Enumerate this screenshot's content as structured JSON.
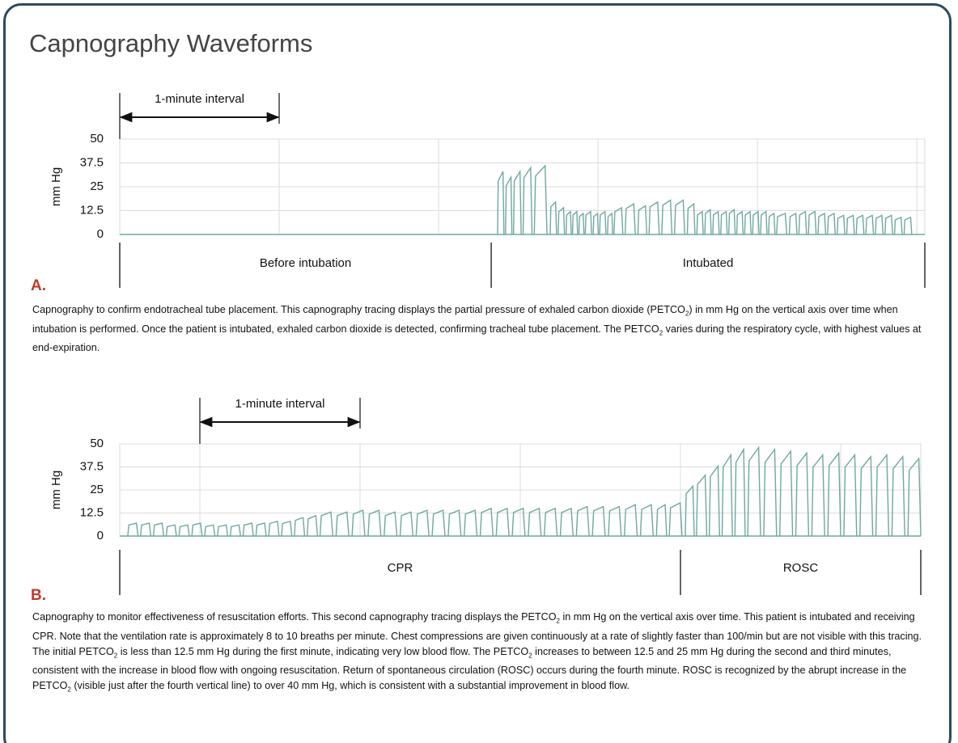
{
  "title": "Capnography Waveforms",
  "chart_data": [
    {
      "type": "capnogram",
      "panel_label": "A.",
      "y_label": "mm Hg",
      "color": "#6fa8a0",
      "grid": true,
      "xlim": [
        0,
        5.05
      ],
      "ylim": [
        0,
        50
      ],
      "yticks": [
        0,
        12.5,
        25,
        37.5,
        50
      ],
      "interval": {
        "label": "1-minute interval",
        "start": 0,
        "end": 1
      },
      "phases": [
        {
          "label": "Before intubation",
          "start": 0,
          "end": 2.33
        },
        {
          "label": "Intubated",
          "start": 2.33,
          "end": 5.05
        }
      ],
      "x": [
        2.37,
        2.42,
        2.47,
        2.53,
        2.6,
        2.7,
        2.75,
        2.8,
        2.84,
        2.88,
        2.92,
        2.97,
        3.01,
        3.06,
        3.1,
        3.17,
        3.25,
        3.32,
        3.4,
        3.48,
        3.56,
        3.62,
        3.67,
        3.72,
        3.77,
        3.82,
        3.87,
        3.92,
        3.97,
        4.02,
        4.07,
        4.12,
        4.2,
        4.26,
        4.32,
        4.38,
        4.44,
        4.5,
        4.56,
        4.62,
        4.68,
        4.74,
        4.8,
        4.86,
        4.92
      ],
      "values": [
        33,
        30,
        33,
        35,
        36,
        17,
        14,
        12,
        12,
        11,
        12,
        11,
        12,
        11,
        14,
        16,
        15,
        17,
        18,
        18,
        16,
        12,
        13,
        12,
        12,
        13,
        12,
        12,
        12,
        12,
        11,
        11,
        11,
        12,
        12,
        11,
        11,
        10,
        10,
        10,
        10,
        10,
        10,
        9,
        9
      ],
      "caption": [
        "Capnography to confirm endotracheal tube placement. This capnography tracing displays the partial pressure of exhaled carbon dioxide (PETCO",
        "2",
        ") in mm Hg on the vertical axis over time when intubation is performed. Once the patient is intubated, exhaled carbon dioxide is detected, confirming tracheal tube placement. The PETCO",
        "2",
        " varies during the respiratory cycle, with highest values at end-expiration."
      ]
    },
    {
      "type": "capnogram",
      "panel_label": "B.",
      "y_label": "mm Hg",
      "color": "#6fa8a0",
      "grid": true,
      "xlim": [
        -0.5,
        4.5
      ],
      "ylim": [
        0,
        50
      ],
      "yticks": [
        0,
        12.5,
        25,
        37.5,
        50
      ],
      "interval": {
        "label": "1-minute interval",
        "start": 0,
        "end": 1
      },
      "phases": [
        {
          "label": "CPR",
          "start": -0.5,
          "end": 3.0
        },
        {
          "label": "ROSC",
          "start": 3.0,
          "end": 4.5
        }
      ],
      "x": [
        -0.45,
        -0.37,
        -0.29,
        -0.21,
        -0.13,
        -0.05,
        0.03,
        0.11,
        0.19,
        0.27,
        0.35,
        0.43,
        0.51,
        0.59,
        0.67,
        0.75,
        0.85,
        0.95,
        1.05,
        1.15,
        1.25,
        1.35,
        1.45,
        1.55,
        1.65,
        1.75,
        1.85,
        1.95,
        2.05,
        2.15,
        2.25,
        2.35,
        2.45,
        2.55,
        2.65,
        2.75,
        2.85,
        2.93,
        3.03,
        3.1,
        3.18,
        3.26,
        3.34,
        3.42,
        3.52,
        3.62,
        3.72,
        3.82,
        3.92,
        4.02,
        4.12,
        4.22,
        4.32,
        4.42
      ],
      "values": [
        7,
        7,
        7,
        6,
        6,
        7,
        6,
        6,
        6,
        7,
        7,
        8,
        8,
        10,
        11,
        13,
        13,
        14,
        14,
        13,
        13,
        14,
        14,
        14,
        14,
        15,
        15,
        15,
        15,
        15,
        15,
        16,
        16,
        16,
        17,
        17,
        17,
        18,
        27,
        33,
        38,
        44,
        47,
        48,
        47,
        46,
        45,
        44,
        45,
        44,
        43,
        44,
        43,
        42
      ],
      "caption": [
        "Capnography to monitor effectiveness of resuscitation efforts. This second capnography tracing displays the PETCO",
        "2",
        " in mm Hg on the vertical axis over time. This patient is intubated and receiving CPR. Note that the ventilation rate is approximately 8 to 10 breaths per minute. Chest compressions are given continuously at a rate of slightly faster than 100/min but are not visible with this tracing. The initial PETCO",
        "2",
        " is less than 12.5 mm Hg during the first minute, indicating very low blood flow. The PETCO",
        "2",
        " increases to between 12.5 and 25 mm Hg during the second and third minutes, consistent with the increase in blood flow with ongoing resuscitation. Return of spontaneous circulation (ROSC) occurs during the fourth minute. ROSC is recognized by the abrupt increase in the PETCO",
        "2",
        " (visible just after the fourth vertical line) to over 40 mm Hg, which is consistent with a substantial improvement in blood flow."
      ]
    }
  ]
}
